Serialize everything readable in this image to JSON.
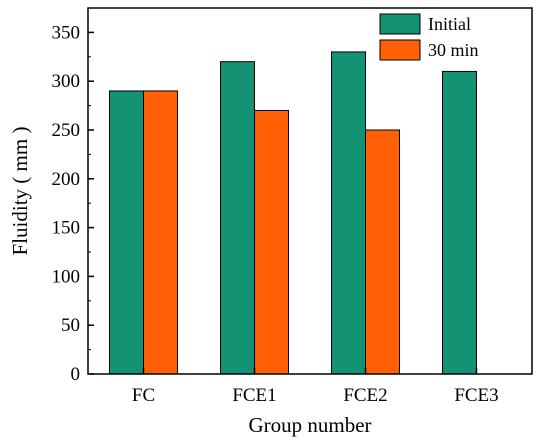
{
  "chart_data": {
    "type": "bar",
    "title": "",
    "xlabel": "Group number",
    "ylabel": "Fluidity ( mm )",
    "categories": [
      "FC",
      "FCE1",
      "FCE2",
      "FCE3"
    ],
    "series": [
      {
        "name": "Initial",
        "values": [
          290,
          320,
          330,
          310
        ],
        "color": "#149374"
      },
      {
        "name": "30 min",
        "values": [
          290,
          270,
          250,
          null
        ],
        "color": "#FF5F05"
      }
    ],
    "ylim": [
      0,
      375
    ],
    "yticks": [
      0,
      50,
      100,
      150,
      200,
      250,
      300,
      350
    ],
    "grid": false,
    "legend_position": "top-right"
  }
}
